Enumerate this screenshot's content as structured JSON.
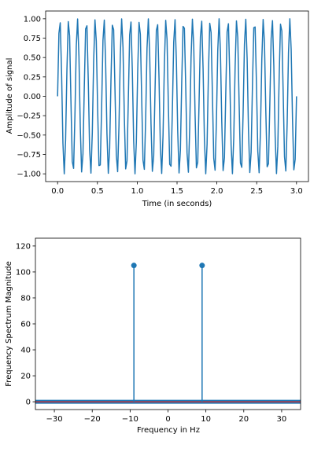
{
  "chart_data": [
    {
      "type": "line",
      "title": "",
      "xlabel": "Time (in seconds)",
      "ylabel": "Amplitude of signal",
      "xlim": [
        -0.15,
        3.15
      ],
      "ylim": [
        -1.1,
        1.1
      ],
      "xticks": [
        0.0,
        0.5,
        1.0,
        1.5,
        2.0,
        2.5,
        3.0
      ],
      "xtick_labels": [
        "0.0",
        "0.5",
        "1.0",
        "1.5",
        "2.0",
        "2.5",
        "3.0"
      ],
      "yticks": [
        1.0,
        0.75,
        0.5,
        0.25,
        0.0,
        -0.25,
        -0.5,
        -0.75,
        -1.0
      ],
      "ytick_labels": [
        "1.00",
        "0.75",
        "0.50",
        "0.25",
        "0.00",
        "−0.25",
        "−0.50",
        "−0.75",
        "−1.00"
      ],
      "grid": false,
      "series": [
        {
          "color": "#1f77b4",
          "function": "sin(2*pi*9*t)",
          "frequency_hz": 9,
          "t_start": 0,
          "t_end": 3,
          "n_samples": 180
        }
      ]
    },
    {
      "type": "stem",
      "title": "",
      "xlabel": "Frequency in Hz",
      "ylabel": "Frequency Spectrum Magnitude",
      "xlim": [
        -35,
        35
      ],
      "ylim": [
        -6,
        126
      ],
      "xticks": [
        -30,
        -20,
        -10,
        0,
        10,
        20,
        30
      ],
      "xtick_labels": [
        "−30",
        "−20",
        "−10",
        "0",
        "10",
        "20",
        "30"
      ],
      "yticks": [
        0,
        20,
        40,
        60,
        80,
        100,
        120
      ],
      "ytick_labels": [
        "0",
        "20",
        "40",
        "60",
        "80",
        "100",
        "120"
      ],
      "grid": false,
      "stem_color": "#1f77b4",
      "baseline_color": "#d62728",
      "stems": [
        {
          "x": -9,
          "y": 105
        },
        {
          "x": 9,
          "y": 105
        }
      ]
    }
  ]
}
